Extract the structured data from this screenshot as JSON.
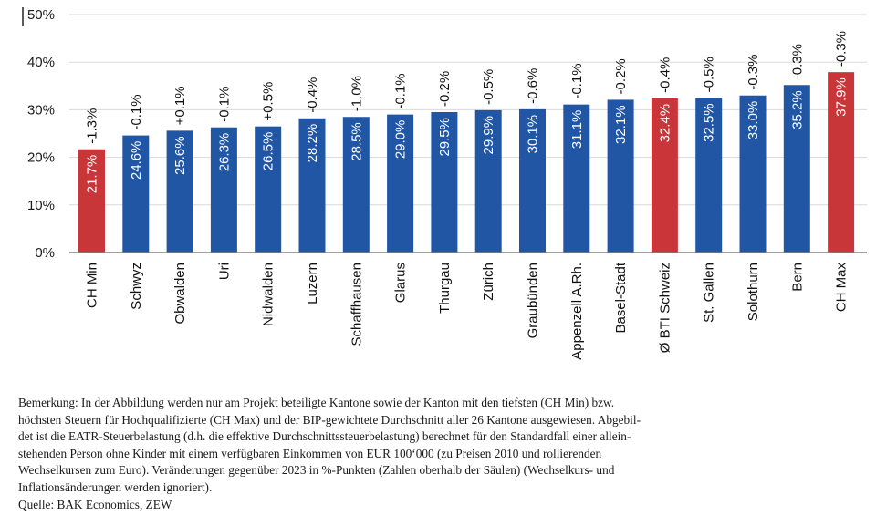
{
  "chart_data": {
    "type": "bar",
    "title": "",
    "xlabel": "",
    "ylabel": "",
    "ylim": [
      0,
      50
    ],
    "yticks": [
      "0%",
      "10%",
      "20%",
      "30%",
      "40%",
      "50%"
    ],
    "ytick_values": [
      0,
      10,
      20,
      30,
      40,
      50
    ],
    "grid": true,
    "categories": [
      "CH Min",
      "Schwyz",
      "Obwalden",
      "Uri",
      "Nidwalden",
      "Luzern",
      "Schaffhausen",
      "Glarus",
      "Thurgau",
      "Zürich",
      "Graubünden",
      "Appenzell A.Rh.",
      "Basel-Stadt",
      "Ø BTI Schweiz",
      "St. Gallen",
      "Solothurn",
      "Bern",
      "CH Max"
    ],
    "values": [
      21.7,
      24.6,
      25.6,
      26.3,
      26.5,
      28.2,
      28.5,
      29.0,
      29.5,
      29.9,
      30.1,
      31.1,
      32.1,
      32.4,
      32.5,
      33.0,
      35.2,
      37.9
    ],
    "value_labels": [
      "21.7%",
      "24.6%",
      "25.6%",
      "26.3%",
      "26.5%",
      "28.2%",
      "28.5%",
      "29.0%",
      "29.5%",
      "29.9%",
      "30.1%",
      "31.1%",
      "32.1%",
      "32.4%",
      "32.5%",
      "33.0%",
      "35.2%",
      "37.9%"
    ],
    "changes": [
      "-1.3%",
      "-0.1%",
      "+0.1%",
      "-0.1%",
      "+0.5%",
      "-0.4%",
      "-1.0%",
      "-0.1%",
      "-0.2%",
      "-0.5%",
      "-0.6%",
      "-0.1%",
      "-0.2%",
      "-0.4%",
      "-0.5%",
      "-0.3%",
      "-0.3%",
      "-0.3%"
    ],
    "highlight": [
      true,
      false,
      false,
      false,
      false,
      false,
      false,
      false,
      false,
      false,
      false,
      false,
      false,
      true,
      false,
      false,
      false,
      true
    ],
    "colors": {
      "default": "#2156a5",
      "highlight": "#c8363a",
      "grid": "#d9d9d9",
      "axis": "#808080"
    }
  },
  "note": {
    "lines": [
      "Bemerkung: In der Abbildung werden nur am Projekt beteiligte Kantone sowie der Kanton mit den tiefsten (CH Min) bzw.",
      "höchsten Steuern für Hochqualifizierte (CH Max) und der BIP-gewichtete Durchschnitt aller 26 Kantone ausgewiesen. Abgebil-",
      "det ist die EATR-Steuerbelastung (d.h. die effektive Durchschnittssteuerbelastung) berechnet für den Standardfall einer allein-",
      "stehenden Person ohne Kinder mit einem verfügbaren Einkommen von EUR 100‘000 (zu Preisen 2010 und rollierenden",
      "Wechselkursen zum Euro). Veränderungen gegenüber 2023 in %-Punkten (Zahlen oberhalb der Säulen) (Wechselkurs- und",
      "Inflationsänderungen werden ignoriert)."
    ],
    "source": "Quelle: BAK Economics, ZEW"
  }
}
